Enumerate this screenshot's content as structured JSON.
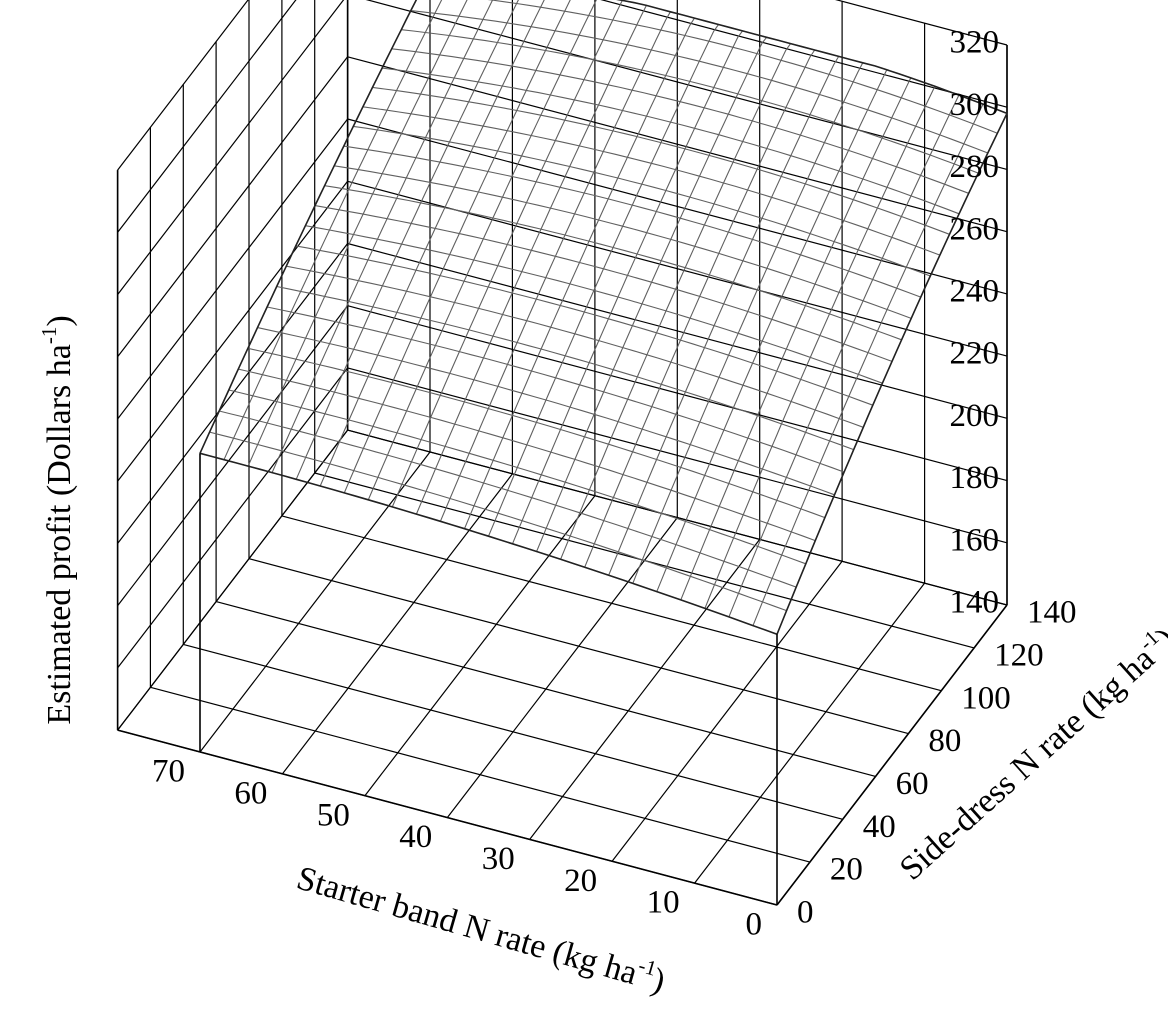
{
  "chart_data": {
    "type": "surface",
    "title": "",
    "x_axis": {
      "label": "Starter band N rate (kg ha",
      "label_sup": "-1",
      "label_end": ")",
      "ticks": [
        0,
        10,
        20,
        30,
        40,
        50,
        60,
        70
      ],
      "range": [
        0,
        70
      ]
    },
    "y_axis": {
      "label": "Side-dress N rate (kg ha",
      "label_sup": "-1",
      "label_end": ")",
      "ticks": [
        0,
        20,
        40,
        60,
        80,
        100,
        120,
        140
      ],
      "range": [
        0,
        140
      ]
    },
    "z_axis": {
      "label": "Estimated profit (Dollars ha",
      "label_sup": "-1",
      "label_end": ")",
      "ticks": [
        140,
        160,
        180,
        200,
        220,
        240,
        260,
        280,
        300,
        320
      ],
      "range": [
        140,
        320
      ]
    },
    "surface": {
      "corner_values": {
        "starter_0_sidedress_0": 227,
        "starter_70_sidedress_0": 236,
        "starter_0_sidedress_140": 298,
        "starter_70_sidedress_140": 294
      },
      "max_value": 302,
      "grid_steps": 24,
      "line_color": "#606060"
    },
    "grid": true
  }
}
